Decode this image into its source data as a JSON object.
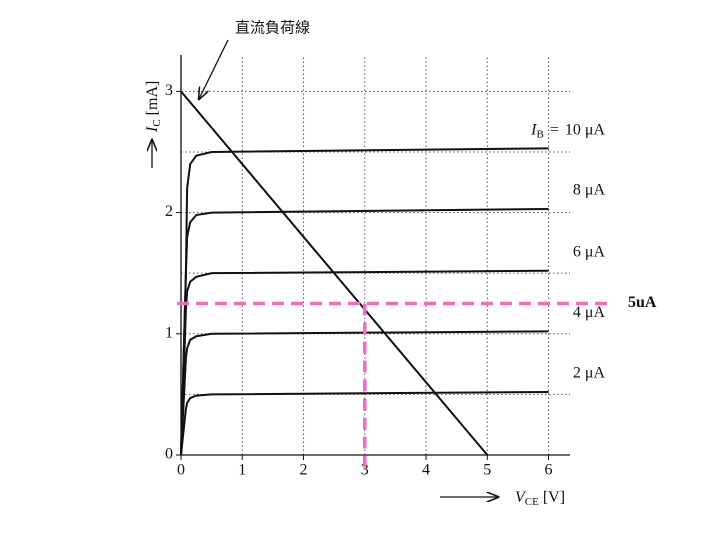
{
  "chart_data": {
    "type": "line",
    "annotation": "直流負荷線",
    "xlabel": {
      "symbol": "V",
      "subscript": "CE",
      "unit": "[V]"
    },
    "ylabel": {
      "symbol": "I",
      "subscript": "C",
      "unit": "[mA]"
    },
    "ib_label": {
      "symbol": "I",
      "subscript": "B",
      "equals": "="
    },
    "xlim": [
      0,
      6.35
    ],
    "ylim": [
      0,
      3.3
    ],
    "xticks": [
      0,
      1,
      2,
      3,
      4,
      5,
      6
    ],
    "yticks": [
      0,
      1,
      2,
      3
    ],
    "grid": true,
    "reference_lines": [
      0.5,
      1,
      1.5,
      2,
      2.5,
      3
    ],
    "x": [
      0,
      0.08,
      0.1,
      0.15,
      0.25,
      0.5,
      6
    ],
    "series": [
      {
        "name": "2 μA",
        "color": "#111111",
        "values": [
          0,
          0.38,
          0.43,
          0.47,
          0.49,
          0.5,
          0.52
        ]
      },
      {
        "name": "4 μA",
        "color": "#111111",
        "values": [
          0,
          0.8,
          0.88,
          0.95,
          0.98,
          1.0,
          1.02
        ]
      },
      {
        "name": "6 μA",
        "color": "#111111",
        "values": [
          0,
          1.2,
          1.35,
          1.43,
          1.47,
          1.5,
          1.52
        ]
      },
      {
        "name": "8 μA",
        "color": "#111111",
        "values": [
          0,
          1.5,
          1.8,
          1.92,
          1.98,
          2.0,
          2.03
        ]
      },
      {
        "name": "10 μA",
        "color": "#111111",
        "values": [
          0,
          1.5,
          2.2,
          2.4,
          2.47,
          2.5,
          2.53
        ]
      }
    ],
    "load_line": {
      "x": [
        0,
        5
      ],
      "values": [
        3,
        0
      ],
      "color": "#111111"
    },
    "operating_point": {
      "x": 3,
      "y": 1.25,
      "label": "5uA",
      "color": "#f06cc0"
    }
  }
}
